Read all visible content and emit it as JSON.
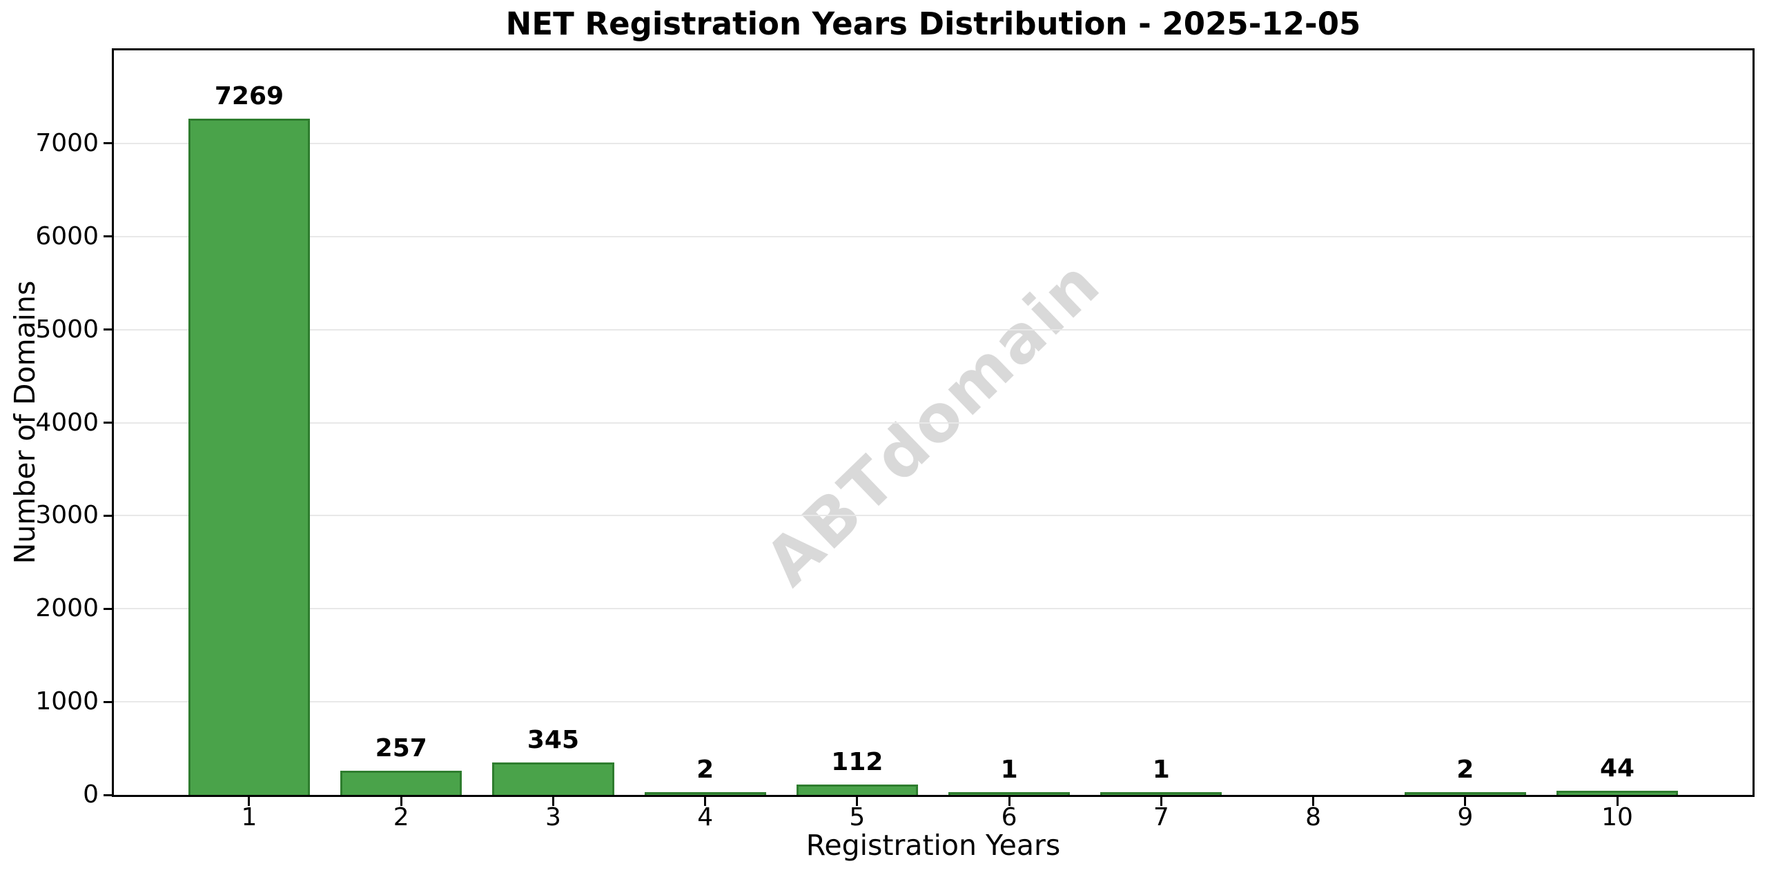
{
  "watermark": "ABTdomain",
  "chart_data": {
    "type": "bar",
    "title": "NET Registration Years Distribution - 2025-12-05",
    "xlabel": "Registration Years",
    "ylabel": "Number of Domains",
    "categories": [
      1,
      2,
      3,
      4,
      5,
      6,
      7,
      8,
      9,
      10
    ],
    "values": [
      7269,
      257,
      345,
      2,
      112,
      1,
      1,
      0,
      2,
      44
    ],
    "bar_labels": [
      "7269",
      "257",
      "345",
      "2",
      "112",
      "1",
      "1",
      "",
      "2",
      "44"
    ],
    "yticks": [
      0,
      1000,
      2000,
      3000,
      4000,
      5000,
      6000,
      7000
    ],
    "ylim": [
      0,
      8000
    ],
    "xlim": [
      0.11,
      10.89
    ],
    "bar_width": 0.8,
    "grid": "horizontal",
    "legend": "none",
    "colors": {
      "bar_fill": "#4aa34a",
      "bar_edge": "#2e7d2e",
      "grid_line": "#e8e8e8",
      "watermark": "#d9d9d9",
      "axis": "#000000",
      "text": "#000000",
      "background": "#ffffff"
    }
  }
}
